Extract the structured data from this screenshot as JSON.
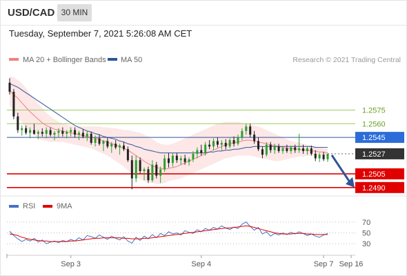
{
  "header": {
    "pair": "USD/CAD",
    "timeframe_label": "30 MIN",
    "timestamp": "Tuesday, September 7, 2021 5:26:08 AM CET"
  },
  "legend": {
    "ma20_label": "MA 20 + Bollinger Bands",
    "ma50_label": "MA 50",
    "copyright": "Research © 2021 Trading Central"
  },
  "colors": {
    "ma20": "#f08080",
    "ma50": "#2f5597",
    "bollinger_fill": "#fde3e3",
    "bullish": "#2ca02c",
    "bearish": "#222222",
    "support": "#e00000",
    "resistance_light": "#9acd5a",
    "pivot": "#2f5597",
    "rsi": "#4472c4",
    "rsi_ma": "#e00000",
    "arrow": "#2f5597",
    "current_price_tag": "#333333"
  },
  "chart_data": [
    {
      "type": "candlestick",
      "title": "USD/CAD",
      "ylim": [
        1.248,
        1.262
      ],
      "x_ticks": [
        "Sep 3",
        "Sep 4",
        "Sep 7",
        "Sep 16"
      ],
      "current_price": "1.2527",
      "levels": [
        {
          "label": "1.2575",
          "value": 1.2575,
          "kind": "resistance",
          "color": "#9acd5a"
        },
        {
          "label": "1.2560",
          "value": 1.256,
          "kind": "resistance",
          "color": "#9acd5a"
        },
        {
          "label": "1.2545",
          "value": 1.2545,
          "kind": "pivot",
          "color": "#2f5597"
        },
        {
          "label": "1.2505",
          "value": 1.2505,
          "kind": "support",
          "color": "#e00000"
        },
        {
          "label": "1.2490",
          "value": 1.249,
          "kind": "support",
          "color": "#e00000"
        }
      ],
      "candles": [
        [
          1.2605,
          1.261,
          1.2592,
          1.2595
        ],
        [
          1.2595,
          1.2598,
          1.2565,
          1.2568
        ],
        [
          1.2568,
          1.2572,
          1.255,
          1.2553
        ],
        [
          1.2553,
          1.2558,
          1.2547,
          1.2555
        ],
        [
          1.2555,
          1.2558,
          1.2548,
          1.255
        ],
        [
          1.255,
          1.2556,
          1.2544,
          1.2553
        ],
        [
          1.2553,
          1.256,
          1.2548,
          1.2549
        ],
        [
          1.2549,
          1.2553,
          1.2543,
          1.2551
        ],
        [
          1.2551,
          1.2555,
          1.2546,
          1.2549
        ],
        [
          1.2549,
          1.2556,
          1.2544,
          1.2553
        ],
        [
          1.2553,
          1.2556,
          1.2546,
          1.2548
        ],
        [
          1.2548,
          1.2552,
          1.2542,
          1.255
        ],
        [
          1.255,
          1.2555,
          1.2545,
          1.2552
        ],
        [
          1.2552,
          1.2556,
          1.2546,
          1.2549
        ],
        [
          1.2549,
          1.2553,
          1.2544,
          1.2551
        ],
        [
          1.2551,
          1.2556,
          1.2546,
          1.2553
        ],
        [
          1.2553,
          1.2556,
          1.2545,
          1.2548
        ],
        [
          1.2548,
          1.2552,
          1.2542,
          1.255
        ],
        [
          1.255,
          1.2554,
          1.2544,
          1.2546
        ],
        [
          1.2546,
          1.2552,
          1.2541,
          1.2549
        ],
        [
          1.2549,
          1.2551,
          1.2537,
          1.2539
        ],
        [
          1.2539,
          1.2547,
          1.2535,
          1.2544
        ],
        [
          1.2544,
          1.2548,
          1.2536,
          1.2538
        ],
        [
          1.2538,
          1.2542,
          1.253,
          1.2541
        ],
        [
          1.2541,
          1.2545,
          1.2533,
          1.2535
        ],
        [
          1.2535,
          1.254,
          1.2528,
          1.2538
        ],
        [
          1.2538,
          1.2542,
          1.2532,
          1.2534
        ],
        [
          1.2534,
          1.2538,
          1.2526,
          1.2536
        ],
        [
          1.2536,
          1.254,
          1.253,
          1.2532
        ],
        [
          1.2532,
          1.2535,
          1.2518,
          1.252
        ],
        [
          1.252,
          1.2525,
          1.2488,
          1.25
        ],
        [
          1.25,
          1.2525,
          1.2496,
          1.252
        ],
        [
          1.252,
          1.2523,
          1.2505,
          1.2508
        ],
        [
          1.2508,
          1.2512,
          1.2498,
          1.251
        ],
        [
          1.251,
          1.2513,
          1.2495,
          1.2498
        ],
        [
          1.2498,
          1.252,
          1.2496,
          1.2515
        ],
        [
          1.2515,
          1.2518,
          1.25,
          1.2503
        ],
        [
          1.2503,
          1.2513,
          1.2495,
          1.251
        ],
        [
          1.251,
          1.2526,
          1.2507,
          1.2522
        ],
        [
          1.2522,
          1.2528,
          1.2512,
          1.2517
        ],
        [
          1.2517,
          1.2528,
          1.2513,
          1.2525
        ],
        [
          1.2525,
          1.2528,
          1.2517,
          1.252
        ],
        [
          1.252,
          1.2525,
          1.2515,
          1.2522
        ],
        [
          1.2522,
          1.2526,
          1.2515,
          1.2518
        ],
        [
          1.2518,
          1.2523,
          1.2514,
          1.2521
        ],
        [
          1.2521,
          1.253,
          1.2518,
          1.2527
        ],
        [
          1.2527,
          1.2534,
          1.2522,
          1.2531
        ],
        [
          1.2531,
          1.2537,
          1.2525,
          1.2528
        ],
        [
          1.2528,
          1.254,
          1.2525,
          1.2537
        ],
        [
          1.2537,
          1.2542,
          1.2532,
          1.2535
        ],
        [
          1.2535,
          1.2544,
          1.2531,
          1.2541
        ],
        [
          1.2541,
          1.2545,
          1.2534,
          1.2537
        ],
        [
          1.2537,
          1.2542,
          1.2531,
          1.2539
        ],
        [
          1.2539,
          1.2543,
          1.2532,
          1.2535
        ],
        [
          1.2535,
          1.2544,
          1.2533,
          1.2542
        ],
        [
          1.2542,
          1.2546,
          1.2535,
          1.2538
        ],
        [
          1.2538,
          1.2548,
          1.2536,
          1.2545
        ],
        [
          1.2545,
          1.2555,
          1.2542,
          1.2552
        ],
        [
          1.2552,
          1.256,
          1.2548,
          1.2557
        ],
        [
          1.2557,
          1.256,
          1.2545,
          1.2548
        ],
        [
          1.2548,
          1.2552,
          1.2538,
          1.2541
        ],
        [
          1.2541,
          1.2545,
          1.253,
          1.2532
        ],
        [
          1.2532,
          1.2535,
          1.2522,
          1.2526
        ],
        [
          1.2526,
          1.254,
          1.2524,
          1.2537
        ],
        [
          1.2537,
          1.254,
          1.2528,
          1.2531
        ],
        [
          1.2531,
          1.2538,
          1.2527,
          1.2535
        ],
        [
          1.2535,
          1.2538,
          1.2528,
          1.253
        ],
        [
          1.253,
          1.2535,
          1.2527,
          1.2533
        ],
        [
          1.2533,
          1.2537,
          1.2528,
          1.253
        ],
        [
          1.253,
          1.2536,
          1.2527,
          1.2534
        ],
        [
          1.2534,
          1.2537,
          1.2528,
          1.2531
        ],
        [
          1.2531,
          1.2549,
          1.2528,
          1.2533
        ],
        [
          1.2533,
          1.2537,
          1.2527,
          1.253
        ],
        [
          1.253,
          1.2535,
          1.2526,
          1.2533
        ],
        [
          1.2533,
          1.2536,
          1.2525,
          1.2527
        ],
        [
          1.2527,
          1.2531,
          1.2519,
          1.2522
        ],
        [
          1.2522,
          1.2528,
          1.2518,
          1.2526
        ],
        [
          1.2526,
          1.2529,
          1.2519,
          1.2521
        ],
        [
          1.2521,
          1.2527,
          1.2518,
          1.2527
        ]
      ],
      "ma50": [
        1.2604,
        1.2602,
        1.26,
        1.2597,
        1.2594,
        1.2591,
        1.2588,
        1.2585,
        1.2582,
        1.2579,
        1.2576,
        1.2573,
        1.257,
        1.2567,
        1.2564,
        1.2561,
        1.2558,
        1.2556,
        1.2554,
        1.2552,
        1.2551,
        1.2549,
        1.2548,
        1.2546,
        1.2545,
        1.2544,
        1.2543,
        1.2541,
        1.254,
        1.2538,
        1.2537,
        1.2535,
        1.2534,
        1.2532,
        1.2531,
        1.253,
        1.2529,
        1.2528,
        1.2528,
        1.2528,
        1.2528,
        1.2528,
        1.2528,
        1.2528,
        1.2528,
        1.2528,
        1.2528,
        1.2528,
        1.2528,
        1.2529,
        1.2529,
        1.253,
        1.253,
        1.2531,
        1.2531,
        1.2532,
        1.2532,
        1.2533,
        1.2534,
        1.2534,
        1.2535,
        1.2535,
        1.2535,
        1.2535,
        1.2535,
        1.2535,
        1.2535,
        1.2535,
        1.2535,
        1.2535,
        1.2535,
        1.2535,
        1.2535,
        1.2535,
        1.2535,
        1.2534,
        1.2534,
        1.2534,
        1.2534
      ],
      "ma20": [
        1.2596,
        1.2592,
        1.2588,
        1.2583,
        1.2578,
        1.2573,
        1.2569,
        1.2565,
        1.2561,
        1.2558,
        1.2556,
        1.2554,
        1.2553,
        1.2552,
        1.2551,
        1.255,
        1.2549,
        1.2548,
        1.2547,
        1.2546,
        1.2545,
        1.2544,
        1.2543,
        1.2541,
        1.254,
        1.2538,
        1.2537,
        1.2535,
        1.2533,
        1.2531,
        1.2528,
        1.2525,
        1.2522,
        1.2519,
        1.2516,
        1.2514,
        1.2512,
        1.2511,
        1.251,
        1.2511,
        1.2512,
        1.2513,
        1.2515,
        1.2517,
        1.2519,
        1.2521,
        1.2523,
        1.2525,
        1.2527,
        1.2529,
        1.2531,
        1.2533,
        1.2535,
        1.2537,
        1.2538,
        1.2539,
        1.254,
        1.2541,
        1.2542,
        1.2542,
        1.2541,
        1.254,
        1.2539,
        1.2538,
        1.2537,
        1.2536,
        1.2535,
        1.2534,
        1.2533,
        1.2533,
        1.2532,
        1.2532,
        1.2531,
        1.2531,
        1.253,
        1.253,
        1.2529,
        1.2529,
        1.2528
      ],
      "bb_upper": [
        1.2612,
        1.2611,
        1.2608,
        1.2604,
        1.2599,
        1.2593,
        1.2587,
        1.2582,
        1.2577,
        1.2572,
        1.2568,
        1.2565,
        1.2562,
        1.256,
        1.2559,
        1.2558,
        1.2557,
        1.2557,
        1.2557,
        1.2557,
        1.2557,
        1.2557,
        1.2557,
        1.2556,
        1.2556,
        1.2555,
        1.2555,
        1.2554,
        1.2553,
        1.2553,
        1.2552,
        1.2551,
        1.255,
        1.2548,
        1.2546,
        1.2543,
        1.254,
        1.2538,
        1.2537,
        1.2537,
        1.2538,
        1.254,
        1.2542,
        1.2544,
        1.2546,
        1.2548,
        1.255,
        1.2552,
        1.2554,
        1.2556,
        1.2558,
        1.256,
        1.2561,
        1.2562,
        1.2562,
        1.2562,
        1.2562,
        1.2561,
        1.256,
        1.2559,
        1.2558,
        1.2557,
        1.2555,
        1.2553,
        1.2551,
        1.2549,
        1.2547,
        1.2545,
        1.2543,
        1.2541,
        1.254,
        1.2539,
        1.2538,
        1.2537,
        1.2536,
        1.2535,
        1.2534,
        1.2533,
        1.2532
      ],
      "bb_lower": [
        1.258,
        1.2573,
        1.2567,
        1.2561,
        1.2556,
        1.2551,
        1.2547,
        1.2544,
        1.2542,
        1.2541,
        1.254,
        1.254,
        1.254,
        1.254,
        1.2539,
        1.2538,
        1.2537,
        1.2536,
        1.2535,
        1.2534,
        1.2533,
        1.2531,
        1.2529,
        1.2527,
        1.2525,
        1.2522,
        1.2519,
        1.2516,
        1.2513,
        1.2509,
        1.2505,
        1.2502,
        1.2499,
        1.2497,
        1.2496,
        1.2495,
        1.2494,
        1.2494,
        1.2495,
        1.2497,
        1.2498,
        1.2499,
        1.25,
        1.2502,
        1.2504,
        1.2506,
        1.2508,
        1.251,
        1.2512,
        1.2514,
        1.2516,
        1.2518,
        1.252,
        1.2522,
        1.2523,
        1.2524,
        1.2525,
        1.2525,
        1.2525,
        1.2525,
        1.2524,
        1.2523,
        1.2522,
        1.2521,
        1.252,
        1.2519,
        1.2519,
        1.252,
        1.2521,
        1.2522,
        1.2523,
        1.2524,
        1.2524,
        1.2525,
        1.2525,
        1.2525,
        1.2525,
        1.2525,
        1.2524
      ]
    },
    {
      "type": "line",
      "title": "RSI",
      "ylim": [
        15,
        85
      ],
      "y_ticks": [
        "70",
        "50",
        "30"
      ],
      "x_ticks": [
        "Sep 3",
        "Sep 4",
        "Sep 7",
        "Sep 16"
      ],
      "series": [
        {
          "name": "RSI",
          "color": "#4472c4",
          "values": [
            53,
            45,
            39,
            34,
            38,
            35,
            40,
            33,
            37,
            30,
            33,
            35,
            32,
            36,
            34,
            38,
            35,
            41,
            37,
            45,
            43,
            40,
            46,
            42,
            38,
            44,
            40,
            37,
            43,
            35,
            31,
            42,
            36,
            44,
            39,
            47,
            41,
            49,
            45,
            52,
            48,
            50,
            46,
            54,
            51,
            49,
            56,
            52,
            58,
            55,
            60,
            57,
            63,
            59,
            56,
            61,
            58,
            66,
            70,
            62,
            55,
            60,
            48,
            52,
            44,
            49,
            46,
            50,
            47,
            51,
            48,
            52,
            49,
            45,
            48,
            44,
            42,
            46,
            49
          ]
        },
        {
          "name": "9MA",
          "color": "#e00000",
          "values": [
            48,
            47,
            45,
            42,
            40,
            38,
            37,
            36,
            35,
            35,
            34,
            34,
            34,
            34,
            34,
            35,
            35,
            36,
            37,
            38,
            39,
            40,
            40,
            41,
            41,
            41,
            41,
            41,
            40,
            40,
            39,
            39,
            39,
            40,
            40,
            41,
            42,
            43,
            44,
            45,
            46,
            47,
            48,
            49,
            50,
            51,
            52,
            53,
            54,
            55,
            56,
            57,
            58,
            59,
            59,
            60,
            61,
            62,
            63,
            62,
            60,
            58,
            56,
            54,
            52,
            50,
            49,
            48,
            48,
            48,
            49,
            49,
            49,
            48,
            48,
            47,
            47,
            47,
            47
          ]
        }
      ]
    }
  ],
  "rsi_legend": {
    "rsi_label": "RSI",
    "ma_label": "9MA"
  },
  "x_axis": {
    "ticks": [
      "Sep 3",
      "Sep 4",
      "Sep 7",
      "Sep 16"
    ]
  }
}
